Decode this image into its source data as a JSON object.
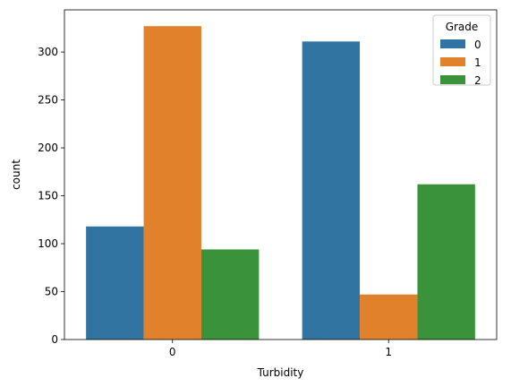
{
  "chart_data": {
    "type": "bar",
    "title": "",
    "xlabel": "Turbidity",
    "ylabel": "count",
    "categories": [
      "0",
      "1"
    ],
    "series": [
      {
        "name": "0",
        "values": [
          118,
          311
        ],
        "color": "#3274a1"
      },
      {
        "name": "1",
        "values": [
          327,
          47
        ],
        "color": "#e1812c"
      },
      {
        "name": "2",
        "values": [
          94,
          162
        ],
        "color": "#3a923a"
      }
    ],
    "ylim": [
      0,
      344
    ],
    "yticks": [
      0,
      50,
      100,
      150,
      200,
      250,
      300
    ],
    "grid": false,
    "legend": {
      "title": "Grade",
      "placement": "top-right"
    }
  }
}
